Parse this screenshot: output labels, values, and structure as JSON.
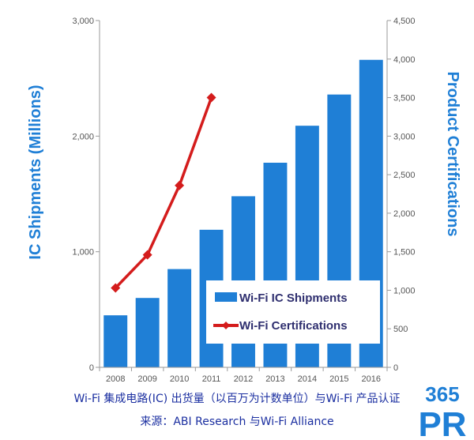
{
  "chart_data": {
    "type": "bar",
    "categories": [
      "2008",
      "2009",
      "2010",
      "2011",
      "2012",
      "2013",
      "2014",
      "2015",
      "2016"
    ],
    "series": [
      {
        "name": "Wi-Fi IC Shipments",
        "type": "bar",
        "axis": "left",
        "color": "#1f7fd6",
        "values": [
          450,
          600,
          850,
          1190,
          1480,
          1770,
          2090,
          2360,
          2660
        ]
      },
      {
        "name": "Wi-Fi Certifications",
        "type": "line",
        "axis": "right",
        "color": "#d41c1c",
        "values": [
          1030,
          1460,
          2360,
          3500,
          null,
          null,
          null,
          null,
          null
        ]
      }
    ],
    "ylabel": "IC Shipments (Millions)",
    "y2label": "Product Certifications",
    "ylim": [
      0,
      3000
    ],
    "y2lim": [
      0,
      4500
    ],
    "yticks": [
      "0",
      "1,000",
      "2,000",
      "3,000"
    ],
    "y2ticks": [
      "0",
      "500",
      "1,000",
      "1,500",
      "2,000",
      "2,500",
      "3,000",
      "3,500",
      "4,000",
      "4,500"
    ],
    "grid": false,
    "legend_position": "bottom-right-inside"
  },
  "caption": {
    "line1": "Wi-Fi 集成电路(IC) 出货量（以百万为计数单位）与Wi-Fi 产品认证",
    "line2": "来源：ABI Research 与Wi-Fi Alliance"
  },
  "logo": {
    "top": "365",
    "bottom": "PR"
  }
}
